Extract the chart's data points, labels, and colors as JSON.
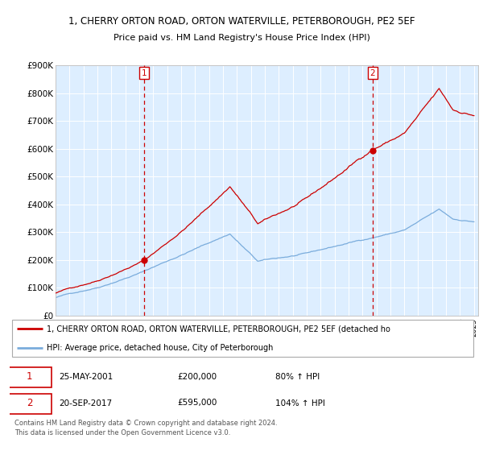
{
  "title_line1": "1, CHERRY ORTON ROAD, ORTON WATERVILLE, PETERBOROUGH, PE2 5EF",
  "title_line2": "Price paid vs. HM Land Registry's House Price Index (HPI)",
  "legend_line1": "1, CHERRY ORTON ROAD, ORTON WATERVILLE, PETERBOROUGH, PE2 5EF (detached ho",
  "legend_line2": "HPI: Average price, detached house, City of Peterborough",
  "sale1_date": "25-MAY-2001",
  "sale1_price": "£200,000",
  "sale1_hpi": "80% ↑ HPI",
  "sale1_year": 2001.37,
  "sale1_value": 200000,
  "sale2_date": "20-SEP-2017",
  "sale2_price": "£595,000",
  "sale2_hpi": "104% ↑ HPI",
  "sale2_year": 2017.72,
  "sale2_value": 595000,
  "red_line_color": "#cc0000",
  "blue_line_color": "#7aacdc",
  "bg_color": "#ddeeff",
  "grid_color": "#ffffff",
  "vline_color": "#cc0000",
  "dot_color": "#cc0000",
  "footer_text": "Contains HM Land Registry data © Crown copyright and database right 2024.\nThis data is licensed under the Open Government Licence v3.0.",
  "ylim_max": 900000,
  "yticks": [
    0,
    100000,
    200000,
    300000,
    400000,
    500000,
    600000,
    700000,
    800000,
    900000
  ],
  "ytick_labels": [
    "£0",
    "£100K",
    "£200K",
    "£300K",
    "£400K",
    "£500K",
    "£600K",
    "£700K",
    "£800K",
    "£900K"
  ]
}
